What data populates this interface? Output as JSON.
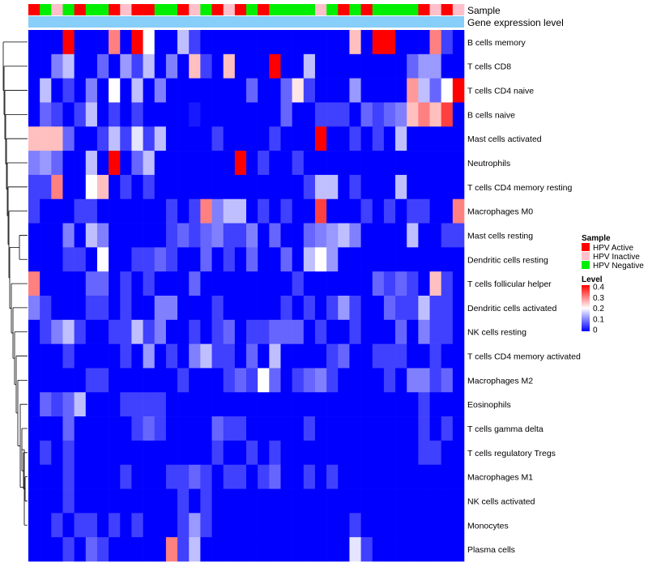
{
  "chart_data": {
    "type": "heatmap",
    "annotation_labels": [
      "Sample",
      "Gene expression level"
    ],
    "rows": [
      "B cells memory",
      "T cells CD8",
      "T cells CD4 naive",
      "B cells naive",
      "Mast cells activated",
      "Neutrophils",
      "T cells CD4 memory resting",
      "Macrophages M0",
      "Mast cells resting",
      "Dendritic cells resting",
      "T cells follicular helper",
      "Dendritic cells activated",
      "NK cells resting",
      "T cells CD4 memory activated",
      "Macrophages M2",
      "Eosinophils",
      "T cells gamma delta",
      "T cells regulatory  Tregs",
      "Macrophages M1",
      "NK cells activated",
      "Monocytes",
      "Plasma cells"
    ],
    "sample_groups": [
      "HPV Active",
      "HPV Negative",
      "HPV Inactive",
      "HPV Negative",
      "HPV Active",
      "HPV Negative",
      "HPV Negative",
      "HPV Active",
      "HPV Inactive",
      "HPV Active",
      "HPV Active",
      "HPV Negative",
      "HPV Negative",
      "HPV Active",
      "HPV Inactive",
      "HPV Negative",
      "HPV Active",
      "HPV Inactive",
      "HPV Active",
      "HPV Negative",
      "HPV Active",
      "HPV Negative",
      "HPV Negative",
      "HPV Negative",
      "HPV Negative",
      "HPV Inactive",
      "HPV Negative",
      "HPV Active",
      "HPV Negative",
      "HPV Active",
      "HPV Negative",
      "HPV Negative",
      "HPV Negative",
      "HPV Negative",
      "HPV Active",
      "HPV Inactive",
      "HPV Active",
      "HPV Inactive"
    ],
    "legend": {
      "sample_title": "Sample",
      "sample_entries": [
        {
          "label": "HPV Active",
          "color": "#ff0000"
        },
        {
          "label": "HPV Inactive",
          "color": "#ffc0cb"
        },
        {
          "label": "HPV Negative",
          "color": "#00ee00"
        }
      ],
      "level_title": "Level",
      "level_ticks": [
        "0.4",
        "0.3",
        "0.2",
        "0.1",
        "0"
      ],
      "level_range": [
        0,
        0.4
      ]
    },
    "colors": {
      "low": "#0000ff",
      "mid": "#ffffff",
      "high": "#ff0000",
      "expression_bar": "#87cefa"
    },
    "values": [
      [
        0,
        0,
        0,
        0.4,
        0,
        0,
        0,
        0.3,
        0,
        0.4,
        0.2,
        0,
        0,
        0.15,
        0.05,
        0,
        0,
        0,
        0,
        0,
        0,
        0,
        0,
        0,
        0,
        0,
        0,
        0,
        0.25,
        0,
        0.4,
        0.4,
        0,
        0,
        0,
        0.3,
        0.05,
        0
      ],
      [
        0,
        0,
        0.1,
        0.15,
        0,
        0,
        0.08,
        0,
        0.12,
        0.05,
        0.15,
        0,
        0.1,
        0,
        0.25,
        0.05,
        0,
        0.25,
        0,
        0,
        0,
        0.4,
        0,
        0,
        0.15,
        0,
        0,
        0,
        0,
        0,
        0,
        0,
        0,
        0.08,
        0.12,
        0.12,
        0,
        0
      ],
      [
        0,
        0.15,
        0,
        0.05,
        0,
        0.1,
        0,
        0.2,
        0,
        0.15,
        0,
        0.1,
        0,
        0,
        0,
        0,
        0,
        0,
        0,
        0.08,
        0,
        0,
        0.08,
        0.22,
        0.05,
        0,
        0,
        0,
        0.12,
        0,
        0,
        0,
        0,
        0.28,
        0.15,
        0.08,
        0.2,
        0.4
      ],
      [
        0,
        0.08,
        0.05,
        0,
        0.05,
        0.15,
        0,
        0.05,
        0,
        0.05,
        0,
        0,
        0,
        0,
        0.02,
        0,
        0,
        0,
        0,
        0,
        0,
        0,
        0.08,
        0,
        0,
        0.05,
        0.05,
        0.05,
        0,
        0.08,
        0.05,
        0.08,
        0.1,
        0.25,
        0.3,
        0.25,
        0.35,
        0
      ],
      [
        0.25,
        0.25,
        0.25,
        0.08,
        0,
        0,
        0.05,
        0.15,
        0.05,
        0.18,
        0.05,
        0.15,
        0,
        0,
        0,
        0,
        0.05,
        0,
        0,
        0,
        0,
        0.05,
        0,
        0,
        0,
        0.4,
        0,
        0,
        0.05,
        0,
        0.05,
        0,
        0.15,
        0,
        0,
        0,
        0,
        0
      ],
      [
        0.1,
        0.12,
        0.08,
        0,
        0,
        0.15,
        0,
        0.4,
        0,
        0.08,
        0.15,
        0,
        0,
        0,
        0,
        0,
        0,
        0,
        0.4,
        0,
        0.05,
        0,
        0,
        0.05,
        0,
        0,
        0,
        0,
        0,
        0,
        0,
        0,
        0,
        0,
        0,
        0,
        0,
        0
      ],
      [
        0.05,
        0.05,
        0.3,
        0,
        0,
        0.2,
        0.25,
        0,
        0.05,
        0,
        0.05,
        0,
        0,
        0,
        0,
        0,
        0,
        0,
        0,
        0,
        0,
        0,
        0,
        0,
        0.05,
        0.15,
        0.15,
        0,
        0.05,
        0,
        0,
        0,
        0.15,
        0,
        0,
        0,
        0,
        0
      ],
      [
        0.05,
        0,
        0,
        0,
        0.05,
        0.05,
        0,
        0,
        0,
        0,
        0,
        0,
        0.05,
        0,
        0.05,
        0.3,
        0.1,
        0.15,
        0.15,
        0,
        0.05,
        0,
        0.05,
        0,
        0,
        0.35,
        0,
        0,
        0,
        0.05,
        0,
        0.05,
        0,
        0.05,
        0.05,
        0,
        0,
        0.3
      ],
      [
        0,
        0,
        0,
        0.1,
        0,
        0.15,
        0.1,
        0,
        0,
        0,
        0,
        0,
        0.05,
        0.08,
        0.05,
        0.08,
        0.1,
        0.05,
        0.05,
        0.1,
        0,
        0.08,
        0,
        0,
        0.08,
        0.1,
        0.12,
        0.15,
        0.1,
        0,
        0,
        0,
        0,
        0.15,
        0,
        0,
        0.05,
        0.05
      ],
      [
        0,
        0,
        0,
        0.05,
        0.05,
        0,
        0.2,
        0,
        0,
        0.05,
        0.05,
        0.08,
        0.05,
        0,
        0,
        0.08,
        0,
        0.05,
        0,
        0.08,
        0,
        0,
        0.08,
        0,
        0.15,
        0.2,
        0.12,
        0,
        0,
        0,
        0,
        0,
        0,
        0,
        0,
        0,
        0,
        0
      ],
      [
        0.3,
        0,
        0,
        0,
        0,
        0.08,
        0.08,
        0,
        0.05,
        0,
        0.05,
        0,
        0,
        0,
        0.08,
        0,
        0,
        0,
        0,
        0,
        0,
        0,
        0,
        0.05,
        0,
        0,
        0,
        0,
        0,
        0,
        0.08,
        0.05,
        0.08,
        0.05,
        0,
        0.25,
        0.05,
        0
      ],
      [
        0.1,
        0.05,
        0,
        0,
        0,
        0.05,
        0.05,
        0,
        0.05,
        0,
        0,
        0.1,
        0.1,
        0,
        0,
        0,
        0.05,
        0,
        0,
        0,
        0,
        0,
        0.05,
        0,
        0.05,
        0,
        0.05,
        0.12,
        0.05,
        0,
        0,
        0.08,
        0.05,
        0.05,
        0.15,
        0.05,
        0.05,
        0
      ],
      [
        0,
        0.05,
        0.1,
        0.15,
        0.05,
        0,
        0,
        0.05,
        0.05,
        0.15,
        0.05,
        0.1,
        0,
        0,
        0.05,
        0,
        0.05,
        0.08,
        0,
        0.05,
        0.05,
        0.08,
        0.08,
        0.08,
        0,
        0.05,
        0,
        0,
        0.05,
        0,
        0,
        0,
        0.08,
        0,
        0.1,
        0.05,
        0.05,
        0
      ],
      [
        0,
        0,
        0,
        0.05,
        0,
        0,
        0,
        0,
        0.05,
        0,
        0.12,
        0,
        0.05,
        0,
        0.1,
        0.15,
        0.05,
        0.05,
        0,
        0.08,
        0,
        0.15,
        0,
        0,
        0,
        0,
        0.05,
        0.08,
        0,
        0,
        0.05,
        0.05,
        0.05,
        0,
        0,
        0.05,
        0,
        0
      ],
      [
        0,
        0,
        0,
        0,
        0,
        0.05,
        0.05,
        0,
        0,
        0,
        0,
        0,
        0,
        0.05,
        0,
        0,
        0,
        0.05,
        0.08,
        0.05,
        0.2,
        0.08,
        0,
        0.05,
        0.08,
        0.1,
        0.05,
        0,
        0,
        0,
        0,
        0.05,
        0,
        0.1,
        0.1,
        0.05,
        0.08,
        0
      ],
      [
        0,
        0.08,
        0.05,
        0.08,
        0.15,
        0,
        0,
        0,
        0.05,
        0.05,
        0.05,
        0.05,
        0,
        0,
        0,
        0,
        0,
        0,
        0,
        0,
        0,
        0,
        0,
        0,
        0,
        0,
        0,
        0,
        0,
        0,
        0,
        0,
        0,
        0,
        0.05,
        0,
        0,
        0
      ],
      [
        0,
        0,
        0,
        0.08,
        0,
        0,
        0,
        0,
        0,
        0.05,
        0.08,
        0.05,
        0,
        0,
        0,
        0,
        0.08,
        0.05,
        0.05,
        0,
        0,
        0,
        0,
        0,
        0.05,
        0,
        0,
        0,
        0,
        0,
        0,
        0,
        0,
        0,
        0.05,
        0,
        0.05,
        0
      ],
      [
        0,
        0.05,
        0,
        0.05,
        0,
        0,
        0,
        0,
        0,
        0,
        0,
        0,
        0,
        0,
        0,
        0,
        0.05,
        0,
        0,
        0.05,
        0,
        0.05,
        0,
        0,
        0,
        0,
        0,
        0,
        0,
        0,
        0,
        0,
        0,
        0,
        0.05,
        0.05,
        0,
        0
      ],
      [
        0,
        0,
        0,
        0.05,
        0,
        0,
        0,
        0,
        0.05,
        0,
        0,
        0,
        0.05,
        0.05,
        0.08,
        0.05,
        0,
        0.05,
        0.05,
        0,
        0.05,
        0.08,
        0,
        0,
        0.05,
        0,
        0.05,
        0,
        0,
        0,
        0,
        0,
        0,
        0,
        0,
        0,
        0,
        0
      ],
      [
        0,
        0,
        0,
        0.05,
        0,
        0,
        0,
        0,
        0,
        0,
        0,
        0,
        0,
        0.05,
        0,
        0.05,
        0,
        0,
        0,
        0,
        0,
        0,
        0,
        0,
        0,
        0,
        0,
        0,
        0,
        0,
        0,
        0,
        0,
        0,
        0,
        0,
        0,
        0
      ],
      [
        0,
        0,
        0.05,
        0,
        0.05,
        0.05,
        0,
        0.05,
        0,
        0.05,
        0,
        0,
        0,
        0.05,
        0.12,
        0.05,
        0,
        0,
        0,
        0,
        0,
        0,
        0,
        0,
        0,
        0,
        0,
        0,
        0.05,
        0,
        0,
        0,
        0,
        0,
        0,
        0,
        0,
        0
      ],
      [
        0,
        0,
        0,
        0.05,
        0,
        0.08,
        0.05,
        0,
        0,
        0,
        0,
        0,
        0.3,
        0.05,
        0.15,
        0,
        0,
        0,
        0,
        0,
        0,
        0,
        0,
        0,
        0,
        0,
        0,
        0,
        0.18,
        0.05,
        0,
        0,
        0,
        0,
        0,
        0,
        0,
        0
      ]
    ]
  }
}
